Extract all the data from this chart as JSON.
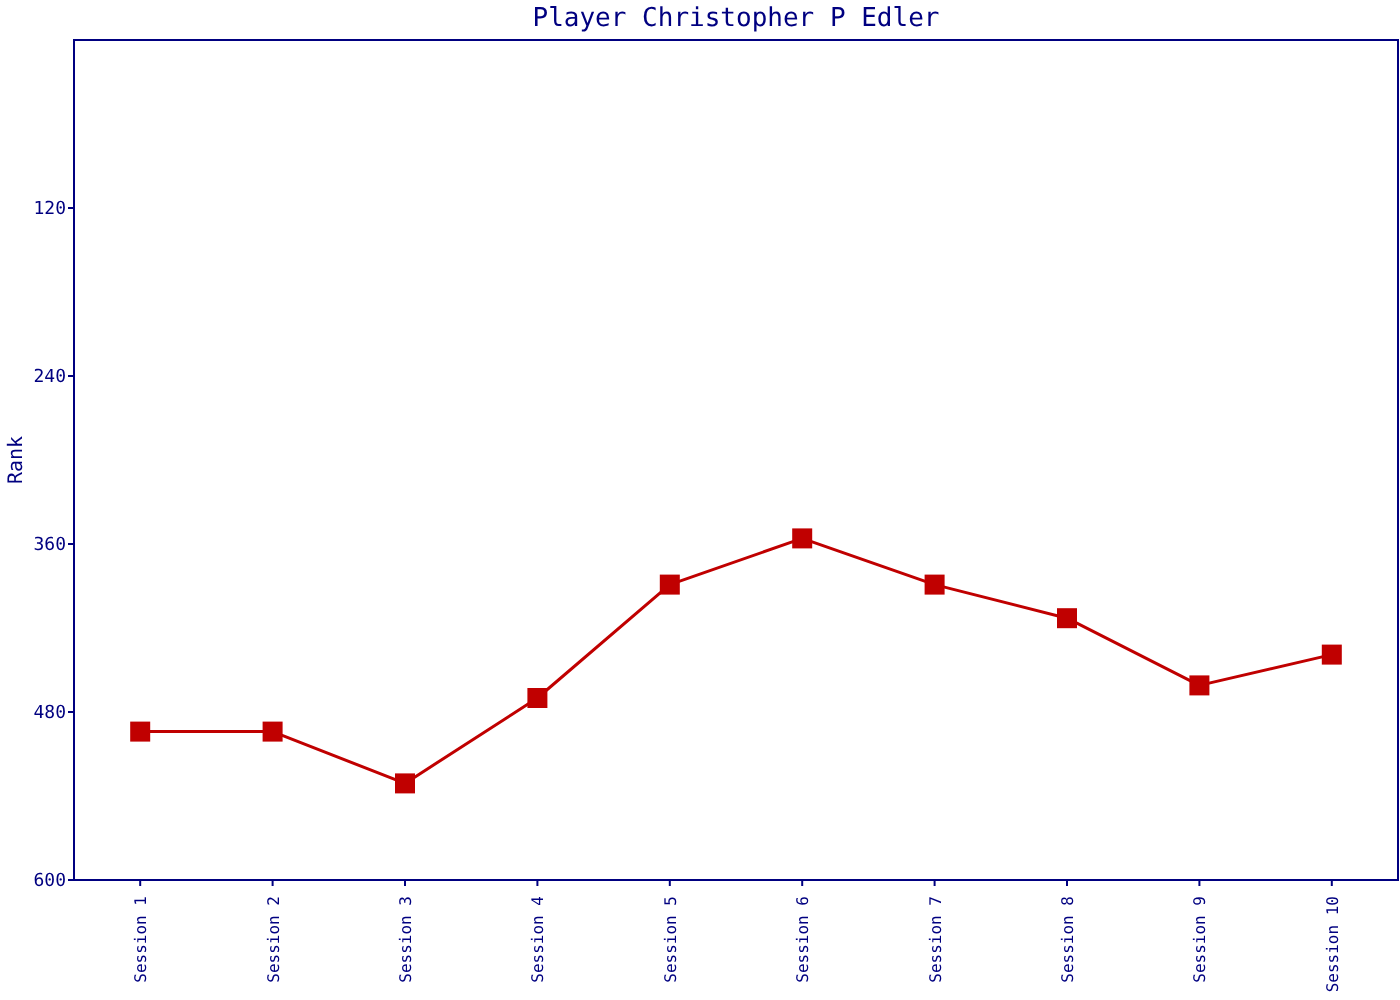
{
  "chart_data": {
    "type": "line",
    "title": "Player Christopher P Edler",
    "ylabel": "Rank",
    "categories": [
      "Session 1",
      "Session 2",
      "Session 3",
      "Session 4",
      "Session 5",
      "Session 6",
      "Session 7",
      "Session 8",
      "Session 9",
      "Session 10"
    ],
    "series": [
      {
        "color": "#c00000",
        "values": [
          494,
          494,
          531,
          470,
          389,
          356,
          389,
          413,
          461,
          439
        ]
      }
    ],
    "ylim": [
      600,
      0
    ],
    "yticks": [
      120,
      240,
      360,
      480,
      600
    ],
    "grid": false,
    "marker": "square",
    "line_style": "solid"
  }
}
